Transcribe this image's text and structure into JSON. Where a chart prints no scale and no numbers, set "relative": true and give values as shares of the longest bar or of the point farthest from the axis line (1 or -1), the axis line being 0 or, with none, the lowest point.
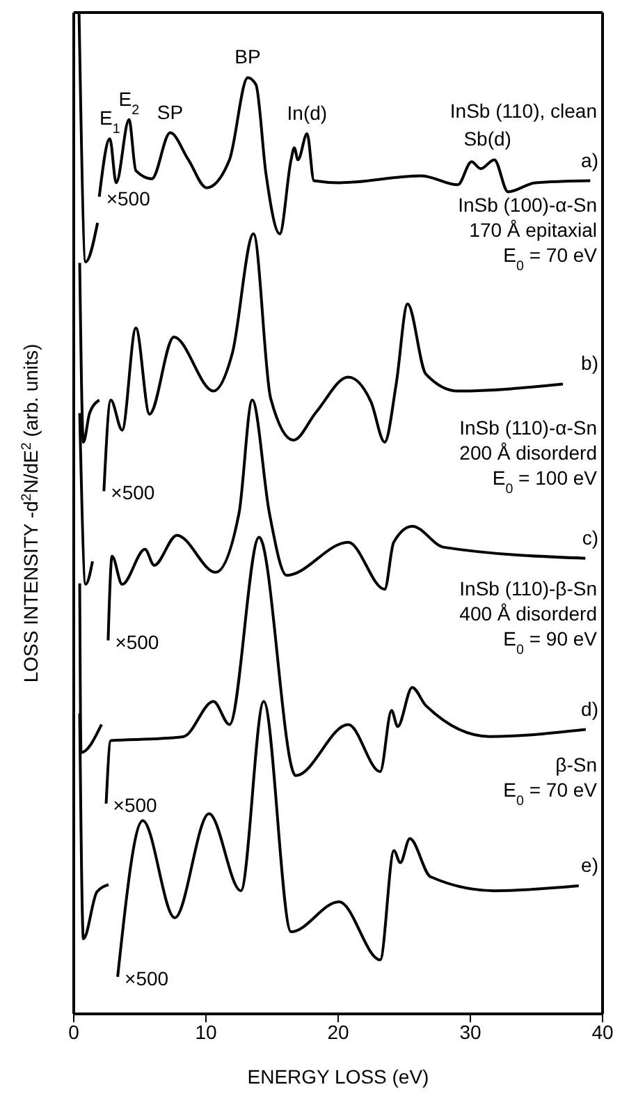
{
  "chart_data": {
    "type": "line",
    "relative": true,
    "xlabel": "ENERGY LOSS (eV)",
    "ylabel": "LOSS INTENSITY -d$^{2}$N/dE$^{2}$ (arb. units)",
    "xlim": [
      0,
      40
    ],
    "xticks": [
      0,
      10,
      20,
      30,
      40
    ],
    "marker": "none",
    "line_style": "solid",
    "series": [
      {
        "name": "a)",
        "color": "#000000",
        "x": [
          0.4,
          0.9,
          1.8,
          null,
          1.93,
          2.73,
          3.21,
          4.18,
          4.7,
          5.91,
          7.29,
          8.67,
          10.05,
          11.78,
          13.16,
          13.78,
          14.54,
          15.58,
          16.44,
          16.68,
          16.96,
          17.65,
          18.17,
          20.07,
          26.29,
          29.05,
          30.09,
          30.78,
          31.81,
          32.85,
          34.92,
          39.07
        ],
        "values": [
          1.0,
          0.751,
          0.79,
          null,
          0.816,
          0.874,
          0.83,
          0.893,
          0.842,
          0.834,
          0.88,
          0.853,
          0.825,
          0.853,
          0.935,
          0.928,
          0.839,
          0.779,
          0.853,
          0.865,
          0.853,
          0.879,
          0.832,
          0.83,
          0.837,
          0.828,
          0.851,
          0.844,
          0.853,
          0.821,
          0.83,
          0.832
        ]
      },
      {
        "name": "b)",
        "color": "#000000",
        "x": [
          0.45,
          0.73,
          1.2,
          1.93,
          null,
          2.28,
          2.8,
          3.66,
          4.7,
          5.73,
          7.57,
          10.57,
          12.0,
          13.6,
          14.89,
          16.61,
          18.34,
          20.76,
          22.49,
          23.52,
          24.39,
          25.25,
          26.63,
          29.05,
          37.0
        ],
        "values": [
          0.75,
          0.571,
          0.6,
          0.613,
          null,
          0.522,
          0.613,
          0.583,
          0.685,
          0.599,
          0.676,
          0.622,
          0.66,
          0.779,
          0.615,
          0.573,
          0.601,
          0.636,
          0.611,
          0.571,
          0.629,
          0.709,
          0.639,
          0.622,
          0.629
        ]
      },
      {
        "name": "c)",
        "color": "#000000",
        "x": [
          0.45,
          0.9,
          1.42,
          null,
          2.6,
          2.9,
          3.66,
          5.39,
          6.08,
          7.8,
          10.74,
          12.5,
          13.5,
          14.8,
          16.1,
          20.76,
          23.52,
          24.2,
          25.6,
          28.0,
          38.7
        ],
        "values": [
          0.6,
          0.429,
          0.452,
          null,
          0.373,
          0.457,
          0.429,
          0.464,
          0.448,
          0.478,
          0.441,
          0.5,
          0.613,
          0.5,
          0.438,
          0.471,
          0.424,
          0.471,
          0.487,
          0.466,
          0.455
        ]
      },
      {
        "name": "d)",
        "color": "#000000",
        "x": [
          0.45,
          0.55,
          2.1,
          null,
          2.45,
          2.8,
          6.6,
          8.32,
          10.57,
          11.78,
          14.02,
          16.79,
          20.76,
          23.18,
          24.04,
          24.5,
          25.6,
          26.63,
          31.47,
          38.73
        ],
        "values": [
          0.43,
          0.261,
          0.289,
          null,
          0.21,
          0.273,
          0.275,
          0.277,
          0.312,
          0.289,
          0.476,
          0.238,
          0.289,
          0.242,
          0.303,
          0.287,
          0.326,
          0.308,
          0.277,
          0.284
        ]
      },
      {
        "name": "e)",
        "color": "#000000",
        "x": [
          0.45,
          0.73,
          1.76,
          2.63,
          null,
          3.32,
          5.22,
          7.64,
          10.23,
          12.64,
          14.37,
          16.44,
          20.07,
          23.18,
          24.22,
          24.7,
          25.42,
          26.98,
          31.81,
          38.2
        ],
        "values": [
          0.3,
          0.075,
          0.122,
          0.129,
          null,
          0.037,
          0.193,
          0.096,
          0.2,
          0.123,
          0.312,
          0.082,
          0.112,
          0.054,
          0.163,
          0.151,
          0.175,
          0.137,
          0.123,
          0.128
        ]
      }
    ],
    "annotations": [
      {
        "text": "E$_{1}$",
        "x": 2.73,
        "y": 0.874
      },
      {
        "text": "E$_{2}$",
        "x": 4.18,
        "y": 0.893
      },
      {
        "text": "SP",
        "x": 7.29,
        "y": 0.88
      },
      {
        "text": "BP",
        "x": 13.16,
        "y": 0.935
      },
      {
        "text": "In(d)",
        "x": 17.65,
        "y": 0.879
      },
      {
        "text": "Sb(d)",
        "x": 31.3,
        "y": 0.853
      },
      "InSb (110), clean",
      "InSb (100)-α-Sn\n170 Å epitaxial\nE$_{0}$ = 70 eV",
      "InSb (110)-α-Sn\n200 Å disorderd\nE$_{0}$ = 100 eV",
      "InSb (110)-β-Sn\n400 Å disorderd\nE$_{0}$ = 90 eV",
      "β-Sn\nE$_{0}$ = 70 eV",
      "×500",
      "×500",
      "×500",
      "×500",
      "×500"
    ]
  }
}
